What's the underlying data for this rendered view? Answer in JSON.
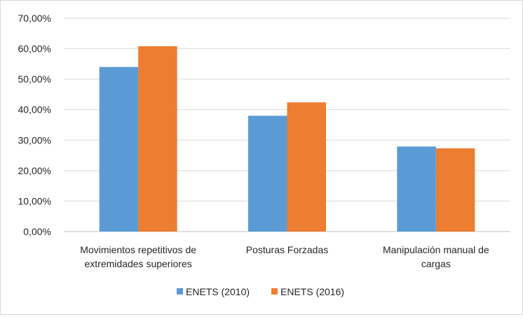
{
  "chart_data": {
    "type": "bar",
    "categories": [
      [
        "Movimientos repetitivos de",
        "extremidades superiores"
      ],
      [
        "Posturas Forzadas"
      ],
      [
        "Manipulación manual de",
        "cargas"
      ]
    ],
    "series": [
      {
        "name": "ENETS (2010)",
        "color": "#5B9BD5",
        "values": [
          54.0,
          38.0,
          27.9
        ]
      },
      {
        "name": "ENETS (2016)",
        "color": "#ED7D31",
        "values": [
          60.8,
          42.4,
          27.3
        ]
      }
    ],
    "ylim": [
      0,
      70
    ],
    "yticks": [
      "0,00%",
      "10,00%",
      "20,00%",
      "30,00%",
      "40,00%",
      "50,00%",
      "60,00%",
      "70,00%"
    ],
    "grid": true,
    "legend": "bottom"
  }
}
